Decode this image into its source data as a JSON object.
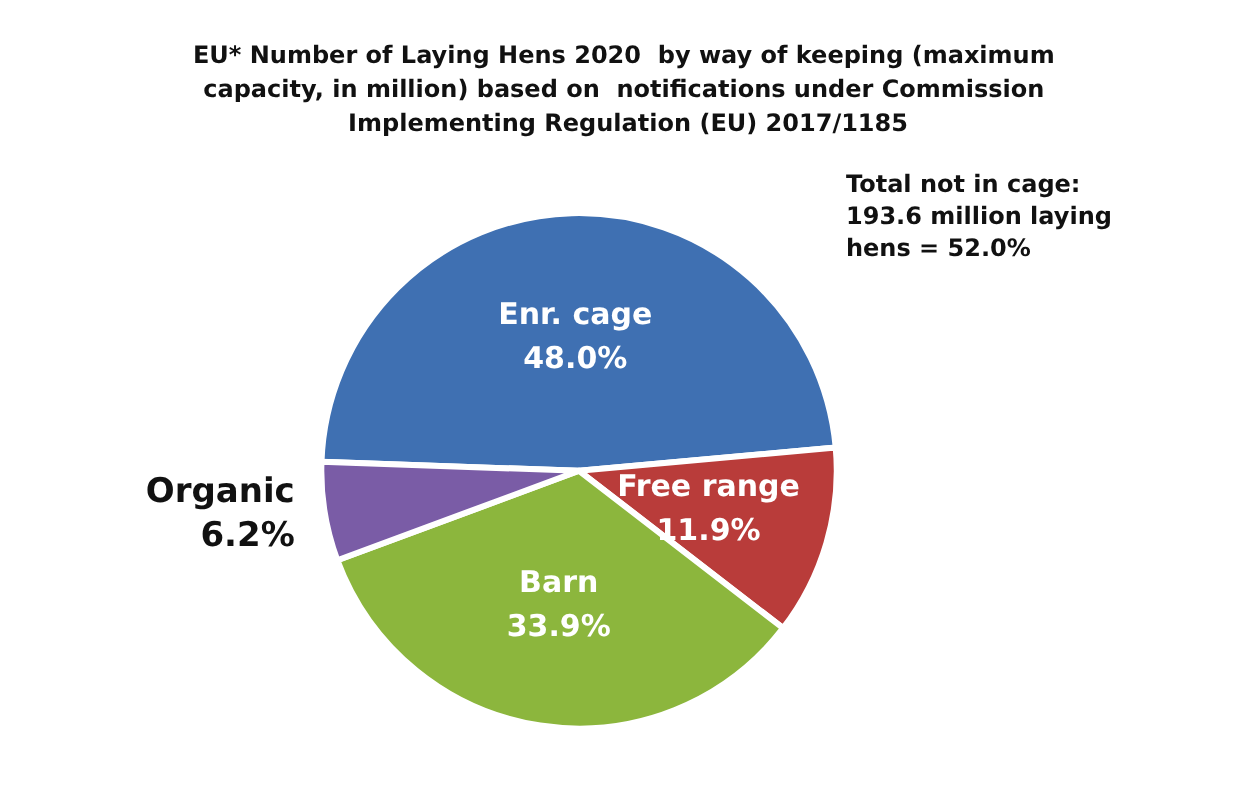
{
  "chart_data": {
    "type": "pie",
    "title": "EU* Number of Laying Hens 2020  by way of keeping (maximum capacity, in million) based on  notifications under Commission Implementing Regulation (EU) 2017/1185",
    "categories": [
      "Enr. cage",
      "Free range",
      "Barn",
      "Organic"
    ],
    "values": [
      48.0,
      11.9,
      33.9,
      6.2
    ],
    "value_labels": [
      "48.0%",
      "11.9%",
      "33.9%",
      "6.2%"
    ],
    "colors": [
      "#3f70b2",
      "#b93c3a",
      "#8cb63d",
      "#7a5ca6"
    ],
    "annotations": [
      "Total not in cage: 193.6 million laying hens = 52.0%"
    ],
    "legend": false
  }
}
